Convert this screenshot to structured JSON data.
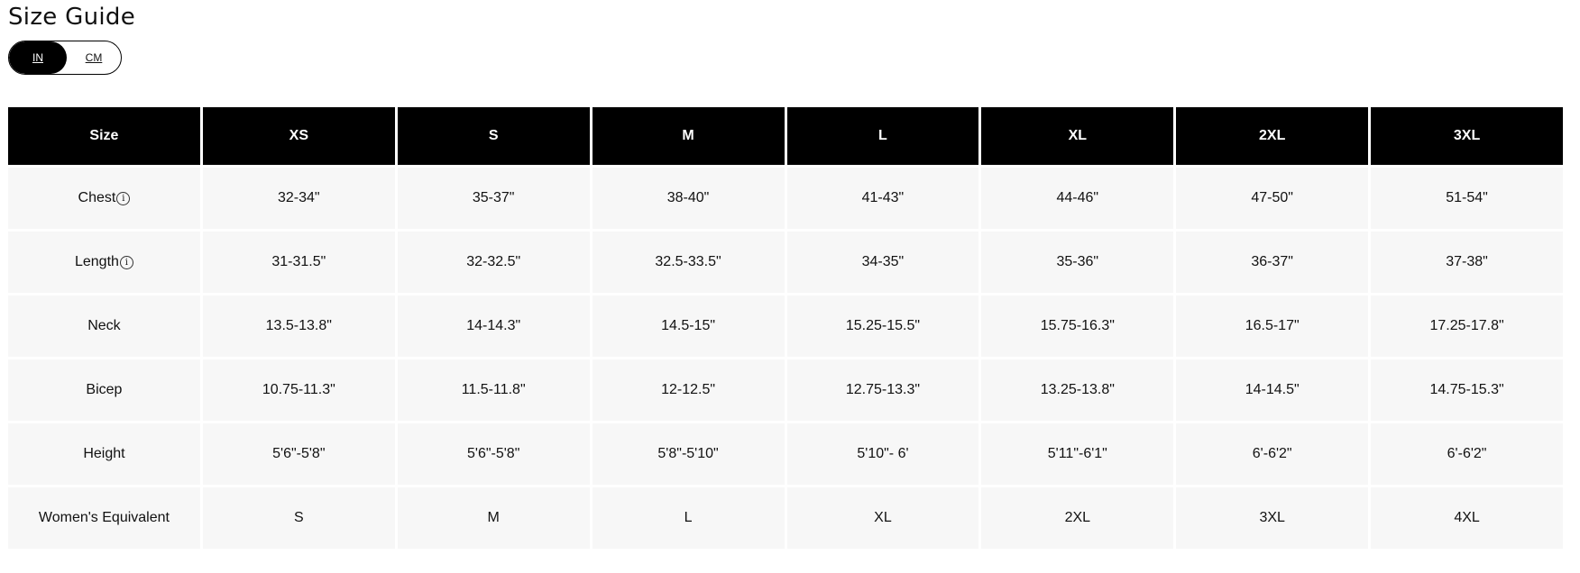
{
  "title": "Size Guide",
  "unit_toggle": {
    "options": [
      "IN",
      "CM"
    ],
    "selected": "IN"
  },
  "table": {
    "headers": [
      "Size",
      "XS",
      "S",
      "M",
      "L",
      "XL",
      "2XL",
      "3XL"
    ],
    "rows": [
      {
        "label": "Chest",
        "info_icon": true,
        "values": [
          "32-34\"",
          "35-37\"",
          "38-40\"",
          "41-43\"",
          "44-46\"",
          "47-50\"",
          "51-54\""
        ]
      },
      {
        "label": "Length",
        "info_icon": true,
        "values": [
          "31-31.5\"",
          "32-32.5\"",
          "32.5-33.5\"",
          "34-35\"",
          "35-36\"",
          "36-37\"",
          "37-38\""
        ]
      },
      {
        "label": "Neck",
        "info_icon": false,
        "values": [
          "13.5-13.8\"",
          "14-14.3\"",
          "14.5-15\"",
          "15.25-15.5\"",
          "15.75-16.3\"",
          "16.5-17\"",
          "17.25-17.8\""
        ]
      },
      {
        "label": "Bicep",
        "info_icon": false,
        "values": [
          "10.75-11.3\"",
          "11.5-11.8\"",
          "12-12.5\"",
          "12.75-13.3\"",
          "13.25-13.8\"",
          "14-14.5\"",
          "14.75-15.3\""
        ]
      },
      {
        "label": "Height",
        "info_icon": false,
        "values": [
          "5'6\"-5'8\"",
          "5'6\"-5'8\"",
          "5'8\"-5'10\"",
          "5'10\"- 6'",
          "5'11\"-6'1\"",
          "6'-6'2\"",
          "6'-6'2\""
        ]
      },
      {
        "label": "Women's Equivalent",
        "info_icon": false,
        "values": [
          "S",
          "M",
          "L",
          "XL",
          "2XL",
          "3XL",
          "4XL"
        ]
      }
    ]
  },
  "colors": {
    "header_bg": "#000000",
    "cell_bg": "#f7f7f7"
  }
}
